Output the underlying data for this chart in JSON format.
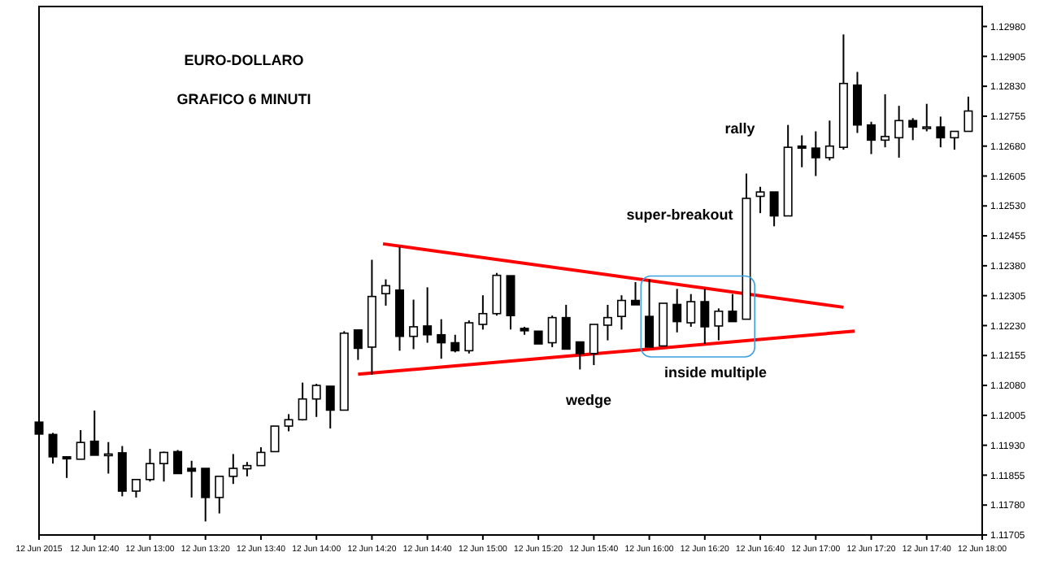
{
  "chart_data": {
    "type": "candlestick",
    "title": "EURO-DOLLARO",
    "subtitle": "GRAFICO 6 MINUTI",
    "annotations": [
      "rally",
      "super-breakout",
      "wedge",
      "inside multiple"
    ],
    "x": [
      "2015-06-12T12:20",
      "2015-06-12T12:25",
      "2015-06-12T12:30",
      "2015-06-12T12:35",
      "2015-06-12T12:40",
      "2015-06-12T12:45",
      "2015-06-12T12:50",
      "2015-06-12T12:55",
      "2015-06-12T13:00",
      "2015-06-12T13:05",
      "2015-06-12T13:10",
      "2015-06-12T13:15",
      "2015-06-12T13:20",
      "2015-06-12T13:25",
      "2015-06-12T13:30",
      "2015-06-12T13:35",
      "2015-06-12T13:40",
      "2015-06-12T13:45",
      "2015-06-12T13:50",
      "2015-06-12T13:55",
      "2015-06-12T14:00",
      "2015-06-12T14:05",
      "2015-06-12T14:10",
      "2015-06-12T14:15",
      "2015-06-12T14:20",
      "2015-06-12T14:25",
      "2015-06-12T14:30",
      "2015-06-12T14:35",
      "2015-06-12T14:40",
      "2015-06-12T14:45",
      "2015-06-12T14:50",
      "2015-06-12T14:55",
      "2015-06-12T15:00",
      "2015-06-12T15:05",
      "2015-06-12T15:10",
      "2015-06-12T15:15",
      "2015-06-12T15:20",
      "2015-06-12T15:25",
      "2015-06-12T15:30",
      "2015-06-12T15:35",
      "2015-06-12T15:40",
      "2015-06-12T15:45",
      "2015-06-12T15:50",
      "2015-06-12T15:55",
      "2015-06-12T16:00",
      "2015-06-12T16:05",
      "2015-06-12T16:10",
      "2015-06-12T16:15",
      "2015-06-12T16:20",
      "2015-06-12T16:25",
      "2015-06-12T16:30",
      "2015-06-12T16:35",
      "2015-06-12T16:40",
      "2015-06-12T16:45",
      "2015-06-12T16:50",
      "2015-06-12T16:55",
      "2015-06-12T17:00",
      "2015-06-12T17:05",
      "2015-06-12T17:10",
      "2015-06-12T17:15",
      "2015-06-12T17:20",
      "2015-06-12T17:25",
      "2015-06-12T17:30",
      "2015-06-12T17:35",
      "2015-06-12T17:40",
      "2015-06-12T17:45",
      "2015-06-12T17:50",
      "2015-06-12T17:55"
    ],
    "ohlc": [
      [
        1.11988,
        1.12021,
        1.11948,
        1.11958
      ],
      [
        1.11957,
        1.11961,
        1.11884,
        1.11901
      ],
      [
        1.11901,
        1.11901,
        1.11848,
        1.11896
      ],
      [
        1.11895,
        1.11968,
        1.11895,
        1.11937
      ],
      [
        1.1194,
        1.12017,
        1.11905,
        1.11905
      ],
      [
        1.11908,
        1.11938,
        1.11859,
        1.11908
      ],
      [
        1.11911,
        1.11928,
        1.11802,
        1.11815
      ],
      [
        1.11815,
        1.11844,
        1.11799,
        1.11844
      ],
      [
        1.11844,
        1.11921,
        1.11839,
        1.11884
      ],
      [
        1.11884,
        1.11914,
        1.11839,
        1.11912
      ],
      [
        1.11914,
        1.11918,
        1.11859,
        1.11859
      ],
      [
        1.11872,
        1.11891,
        1.11799,
        1.11865
      ],
      [
        1.11872,
        1.11872,
        1.11739,
        1.11799
      ],
      [
        1.11799,
        1.11852,
        1.11759,
        1.11852
      ],
      [
        1.11852,
        1.11908,
        1.11833,
        1.11872
      ],
      [
        1.11871,
        1.11888,
        1.11852,
        1.11879
      ],
      [
        1.11879,
        1.11925,
        1.11879,
        1.11912
      ],
      [
        1.11914,
        1.11978,
        1.11914,
        1.11978
      ],
      [
        1.11978,
        1.12008,
        1.11965,
        1.11994
      ],
      [
        1.11994,
        1.12087,
        1.11992,
        1.12046
      ],
      [
        1.12046,
        1.12084,
        1.12001,
        1.1208
      ],
      [
        1.12078,
        1.12078,
        1.11972,
        1.12018
      ],
      [
        1.12018,
        1.12216,
        1.12017,
        1.12211
      ],
      [
        1.12219,
        1.12219,
        1.12144,
        1.12173
      ],
      [
        1.12176,
        1.12395,
        1.12107,
        1.12303
      ],
      [
        1.1231,
        1.12346,
        1.1228,
        1.1233
      ],
      [
        1.12319,
        1.12428,
        1.12167,
        1.12203
      ],
      [
        1.12203,
        1.12295,
        1.12171,
        1.12227
      ],
      [
        1.12229,
        1.12326,
        1.12187,
        1.12207
      ],
      [
        1.12207,
        1.12246,
        1.12147,
        1.12187
      ],
      [
        1.12187,
        1.12207,
        1.12163,
        1.12167
      ],
      [
        1.12167,
        1.12243,
        1.1216,
        1.12237
      ],
      [
        1.12233,
        1.12306,
        1.1222,
        1.1226
      ],
      [
        1.1226,
        1.12362,
        1.12255,
        1.12356
      ],
      [
        1.12355,
        1.12355,
        1.1222,
        1.12255
      ],
      [
        1.12223,
        1.12227,
        1.12207,
        1.12217
      ],
      [
        1.12216,
        1.12216,
        1.12184,
        1.12184
      ],
      [
        1.12187,
        1.12255,
        1.12176,
        1.1225
      ],
      [
        1.1225,
        1.12282,
        1.12171,
        1.12171
      ],
      [
        1.12189,
        1.12189,
        1.1212,
        1.1216
      ],
      [
        1.1216,
        1.12233,
        1.12131,
        1.12233
      ],
      [
        1.12231,
        1.12282,
        1.12193,
        1.1225
      ],
      [
        1.12253,
        1.12306,
        1.1222,
        1.12293
      ],
      [
        1.12293,
        1.12339,
        1.12282,
        1.12282
      ],
      [
        1.12253,
        1.12346,
        1.12176,
        1.12176
      ],
      [
        1.12179,
        1.12286,
        1.12179,
        1.12286
      ],
      [
        1.12283,
        1.12322,
        1.12213,
        1.1224
      ],
      [
        1.12237,
        1.12309,
        1.12227,
        1.1229
      ],
      [
        1.1229,
        1.12322,
        1.12184,
        1.12227
      ],
      [
        1.12229,
        1.12273,
        1.12193,
        1.12266
      ],
      [
        1.12266,
        1.12309,
        1.1224,
        1.1224
      ],
      [
        1.12246,
        1.12611,
        1.12246,
        1.12549
      ],
      [
        1.12554,
        1.12578,
        1.12512,
        1.12565
      ],
      [
        1.12565,
        1.12565,
        1.12479,
        1.12505
      ],
      [
        1.12505,
        1.12733,
        1.12505,
        1.12677
      ],
      [
        1.1268,
        1.12707,
        1.12627,
        1.12675
      ],
      [
        1.12675,
        1.12717,
        1.12605,
        1.12651
      ],
      [
        1.12651,
        1.12744,
        1.12644,
        1.1268
      ],
      [
        1.12677,
        1.1296,
        1.12671,
        1.12837
      ],
      [
        1.12833,
        1.12866,
        1.12713,
        1.12733
      ],
      [
        1.12733,
        1.12741,
        1.1266,
        1.12695
      ],
      [
        1.12695,
        1.1281,
        1.12677,
        1.12704
      ],
      [
        1.12701,
        1.12781,
        1.12651,
        1.12744
      ],
      [
        1.12744,
        1.1275,
        1.12695,
        1.12728
      ],
      [
        1.12728,
        1.12786,
        1.12717,
        1.12728
      ],
      [
        1.12728,
        1.12754,
        1.12677,
        1.12701
      ],
      [
        1.12701,
        1.12717,
        1.12671,
        1.12717
      ],
      [
        1.12717,
        1.12804,
        1.12717,
        1.12768
      ]
    ],
    "series": [
      {
        "type": "line",
        "color": "#ff0000",
        "x": [
          "2015-06-12T14:24",
          "2015-06-12T17:10"
        ],
        "values": [
          1.12435,
          1.12276
        ]
      },
      {
        "type": "line",
        "color": "#ff0000",
        "x": [
          "2015-06-12T14:15",
          "2015-06-12T17:14"
        ],
        "values": [
          1.12108,
          1.12216
        ]
      }
    ],
    "xlim": [
      "2015-06-12T12:20",
      "2015-06-12T18:00"
    ],
    "xticks": [
      {
        "value": "2015-06-12T12:20",
        "label": "12 Jun 2015"
      },
      {
        "value": "2015-06-12T12:40",
        "label": "12 Jun 12:40"
      },
      {
        "value": "2015-06-12T13:00",
        "label": "12 Jun 13:00"
      },
      {
        "value": "2015-06-12T13:20",
        "label": "12 Jun 13:20"
      },
      {
        "value": "2015-06-12T13:40",
        "label": "12 Jun 13:40"
      },
      {
        "value": "2015-06-12T14:00",
        "label": "12 Jun 14:00"
      },
      {
        "value": "2015-06-12T14:20",
        "label": "12 Jun 14:20"
      },
      {
        "value": "2015-06-12T14:40",
        "label": "12 Jun 14:40"
      },
      {
        "value": "2015-06-12T15:00",
        "label": "12 Jun 15:00"
      },
      {
        "value": "2015-06-12T15:20",
        "label": "12 Jun 15:20"
      },
      {
        "value": "2015-06-12T15:40",
        "label": "12 Jun 15:40"
      },
      {
        "value": "2015-06-12T16:00",
        "label": "12 Jun 16:00"
      },
      {
        "value": "2015-06-12T16:20",
        "label": "12 Jun 16:20"
      },
      {
        "value": "2015-06-12T16:40",
        "label": "12 Jun 16:40"
      },
      {
        "value": "2015-06-12T17:00",
        "label": "12 Jun 17:00"
      },
      {
        "value": "2015-06-12T17:20",
        "label": "12 Jun 17:20"
      },
      {
        "value": "2015-06-12T17:40",
        "label": "12 Jun 17:40"
      },
      {
        "value": "2015-06-12T18:00",
        "label": "12 Jun 18:00"
      }
    ],
    "ylim": [
      1.11705,
      1.1303
    ],
    "yticks": [
      {
        "value": 1.1298,
        "label": "1.12980"
      },
      1.12905,
      {
        "value": 1.1283,
        "label": "1.12830"
      },
      1.12755,
      {
        "value": 1.1268,
        "label": "1.12680"
      },
      1.12605,
      {
        "value": 1.1253,
        "label": "1.12530"
      },
      1.12455,
      {
        "value": 1.1238,
        "label": "1.12380"
      },
      1.12305,
      {
        "value": 1.1223,
        "label": "1.12230"
      },
      1.12155,
      {
        "value": 1.1208,
        "label": "1.12080"
      },
      1.12005,
      {
        "value": 1.1193,
        "label": "1.11930"
      },
      1.11855,
      {
        "value": 1.1178,
        "label": "1.11780"
      },
      1.11705
    ]
  }
}
